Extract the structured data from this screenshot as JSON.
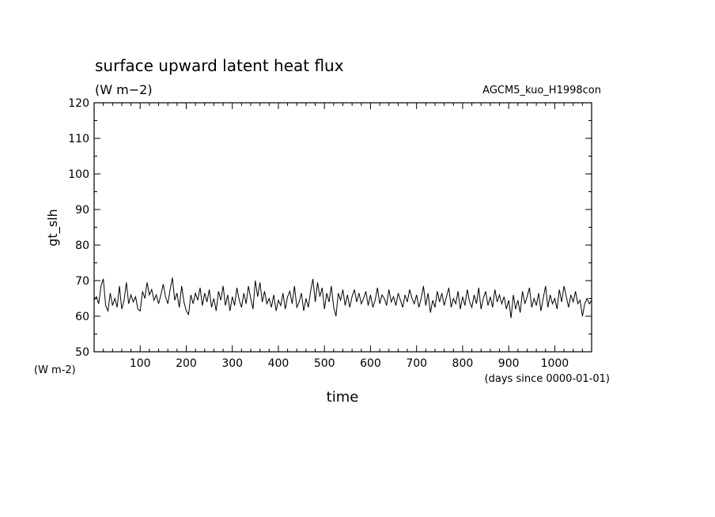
{
  "chart_data": {
    "type": "line",
    "title": "surface upward latent heat flux",
    "subtitle": "(W m−2)",
    "run_label": "AGCM5_kuo_H1998con",
    "ylabel": "gt_slh",
    "yunit": "(W m-2)",
    "xlabel": "time",
    "xunit": "(days since 0000-01-01)",
    "xlim": [
      0,
      1080
    ],
    "ylim": [
      50,
      120
    ],
    "xticks": [
      100,
      200,
      300,
      400,
      500,
      600,
      700,
      800,
      900,
      1000
    ],
    "yticks": [
      50,
      60,
      70,
      80,
      90,
      100,
      110,
      120
    ],
    "grid": false,
    "series": [
      {
        "values": [
          [
            0,
            64.5
          ],
          [
            5,
            65.5
          ],
          [
            10,
            63.5
          ],
          [
            15,
            68.5
          ],
          [
            20,
            70.5
          ],
          [
            25,
            63
          ],
          [
            30,
            61.5
          ],
          [
            35,
            66.5
          ],
          [
            40,
            63
          ],
          [
            45,
            65
          ],
          [
            50,
            62.5
          ],
          [
            55,
            68.5
          ],
          [
            60,
            62
          ],
          [
            65,
            64.5
          ],
          [
            70,
            69.5
          ],
          [
            75,
            63.5
          ],
          [
            80,
            66
          ],
          [
            85,
            64
          ],
          [
            90,
            65.5
          ],
          [
            95,
            62
          ],
          [
            100,
            61.5
          ],
          [
            105,
            67
          ],
          [
            110,
            65
          ],
          [
            115,
            69.5
          ],
          [
            120,
            66
          ],
          [
            125,
            67.5
          ],
          [
            130,
            64.5
          ],
          [
            135,
            66
          ],
          [
            140,
            63.5
          ],
          [
            145,
            66
          ],
          [
            150,
            69
          ],
          [
            155,
            65.5
          ],
          [
            160,
            63.5
          ],
          [
            165,
            67.5
          ],
          [
            170,
            70.8
          ],
          [
            175,
            64.5
          ],
          [
            180,
            66.5
          ],
          [
            185,
            62.5
          ],
          [
            190,
            68.5
          ],
          [
            195,
            64
          ],
          [
            200,
            61.5
          ],
          [
            205,
            60.5
          ],
          [
            210,
            66
          ],
          [
            215,
            63.5
          ],
          [
            220,
            66.5
          ],
          [
            225,
            64.5
          ],
          [
            230,
            68
          ],
          [
            235,
            63
          ],
          [
            240,
            66.5
          ],
          [
            245,
            64
          ],
          [
            250,
            67.5
          ],
          [
            255,
            62.5
          ],
          [
            260,
            65
          ],
          [
            265,
            61.5
          ],
          [
            270,
            67
          ],
          [
            275,
            64.5
          ],
          [
            280,
            68.5
          ],
          [
            285,
            63
          ],
          [
            290,
            66
          ],
          [
            295,
            61.5
          ],
          [
            300,
            65.5
          ],
          [
            305,
            63
          ],
          [
            310,
            68
          ],
          [
            315,
            64.5
          ],
          [
            320,
            62.5
          ],
          [
            325,
            66.5
          ],
          [
            330,
            63.5
          ],
          [
            335,
            68.5
          ],
          [
            340,
            65
          ],
          [
            345,
            62
          ],
          [
            350,
            70
          ],
          [
            355,
            65.5
          ],
          [
            360,
            69.5
          ],
          [
            365,
            64
          ],
          [
            370,
            67
          ],
          [
            375,
            63.5
          ],
          [
            380,
            65
          ],
          [
            385,
            62.5
          ],
          [
            390,
            66
          ],
          [
            395,
            61.5
          ],
          [
            400,
            64.5
          ],
          [
            405,
            63
          ],
          [
            410,
            66.5
          ],
          [
            415,
            62
          ],
          [
            420,
            65.5
          ],
          [
            425,
            67
          ],
          [
            430,
            63.5
          ],
          [
            435,
            68.5
          ],
          [
            440,
            62.5
          ],
          [
            445,
            64
          ],
          [
            450,
            66.5
          ],
          [
            455,
            61.5
          ],
          [
            460,
            65
          ],
          [
            465,
            62.5
          ],
          [
            470,
            67
          ],
          [
            475,
            70.5
          ],
          [
            480,
            64
          ],
          [
            485,
            69.5
          ],
          [
            490,
            65.5
          ],
          [
            495,
            68
          ],
          [
            500,
            62
          ],
          [
            505,
            66.5
          ],
          [
            510,
            64
          ],
          [
            515,
            68.5
          ],
          [
            520,
            62.5
          ],
          [
            525,
            60
          ],
          [
            530,
            66.5
          ],
          [
            535,
            64.5
          ],
          [
            540,
            67.5
          ],
          [
            545,
            63
          ],
          [
            550,
            66
          ],
          [
            555,
            62.5
          ],
          [
            560,
            65.5
          ],
          [
            565,
            67.5
          ],
          [
            570,
            64
          ],
          [
            575,
            66.5
          ],
          [
            580,
            63.5
          ],
          [
            585,
            65
          ],
          [
            590,
            67
          ],
          [
            595,
            63
          ],
          [
            600,
            66
          ],
          [
            605,
            62.5
          ],
          [
            610,
            64.5
          ],
          [
            615,
            68
          ],
          [
            620,
            63.5
          ],
          [
            625,
            66
          ],
          [
            630,
            65
          ],
          [
            635,
            63
          ],
          [
            640,
            67.5
          ],
          [
            645,
            64
          ],
          [
            650,
            65.5
          ],
          [
            655,
            63
          ],
          [
            660,
            66.5
          ],
          [
            665,
            64.5
          ],
          [
            670,
            62.5
          ],
          [
            675,
            66
          ],
          [
            680,
            64
          ],
          [
            685,
            67.5
          ],
          [
            690,
            65
          ],
          [
            695,
            63.5
          ],
          [
            700,
            66
          ],
          [
            705,
            62.5
          ],
          [
            710,
            65
          ],
          [
            715,
            68.5
          ],
          [
            720,
            63
          ],
          [
            725,
            66.5
          ],
          [
            730,
            61
          ],
          [
            735,
            64.5
          ],
          [
            740,
            62.5
          ],
          [
            745,
            67
          ],
          [
            750,
            64
          ],
          [
            755,
            66.5
          ],
          [
            760,
            63
          ],
          [
            765,
            65.5
          ],
          [
            770,
            68
          ],
          [
            775,
            62.5
          ],
          [
            780,
            65
          ],
          [
            785,
            63.5
          ],
          [
            790,
            67
          ],
          [
            795,
            62
          ],
          [
            800,
            65.5
          ],
          [
            805,
            63
          ],
          [
            810,
            67.5
          ],
          [
            815,
            64
          ],
          [
            820,
            62.5
          ],
          [
            825,
            66
          ],
          [
            830,
            63.5
          ],
          [
            835,
            68
          ],
          [
            840,
            62
          ],
          [
            845,
            65
          ],
          [
            850,
            67
          ],
          [
            855,
            63
          ],
          [
            860,
            65.5
          ],
          [
            865,
            62.5
          ],
          [
            870,
            67.5
          ],
          [
            875,
            64
          ],
          [
            880,
            66
          ],
          [
            885,
            63.5
          ],
          [
            890,
            65.5
          ],
          [
            895,
            62
          ],
          [
            900,
            64.5
          ],
          [
            905,
            59.5
          ],
          [
            910,
            66
          ],
          [
            915,
            62
          ],
          [
            920,
            64.5
          ],
          [
            925,
            61
          ],
          [
            930,
            67
          ],
          [
            935,
            63.5
          ],
          [
            940,
            65.5
          ],
          [
            945,
            68
          ],
          [
            950,
            62.5
          ],
          [
            955,
            65
          ],
          [
            960,
            63
          ],
          [
            965,
            66.5
          ],
          [
            970,
            61.5
          ],
          [
            975,
            65
          ],
          [
            980,
            68.5
          ],
          [
            985,
            62.5
          ],
          [
            990,
            66
          ],
          [
            995,
            63.5
          ],
          [
            1000,
            65
          ],
          [
            1005,
            62
          ],
          [
            1010,
            67.5
          ],
          [
            1015,
            64
          ],
          [
            1020,
            68.5
          ],
          [
            1025,
            65.5
          ],
          [
            1030,
            62.5
          ],
          [
            1035,
            66
          ],
          [
            1040,
            64
          ],
          [
            1045,
            67
          ],
          [
            1050,
            63.5
          ],
          [
            1055,
            64.5
          ],
          [
            1060,
            60
          ],
          [
            1065,
            63.5
          ],
          [
            1070,
            65
          ],
          [
            1075,
            63.5
          ],
          [
            1080,
            64.5
          ]
        ]
      }
    ]
  }
}
